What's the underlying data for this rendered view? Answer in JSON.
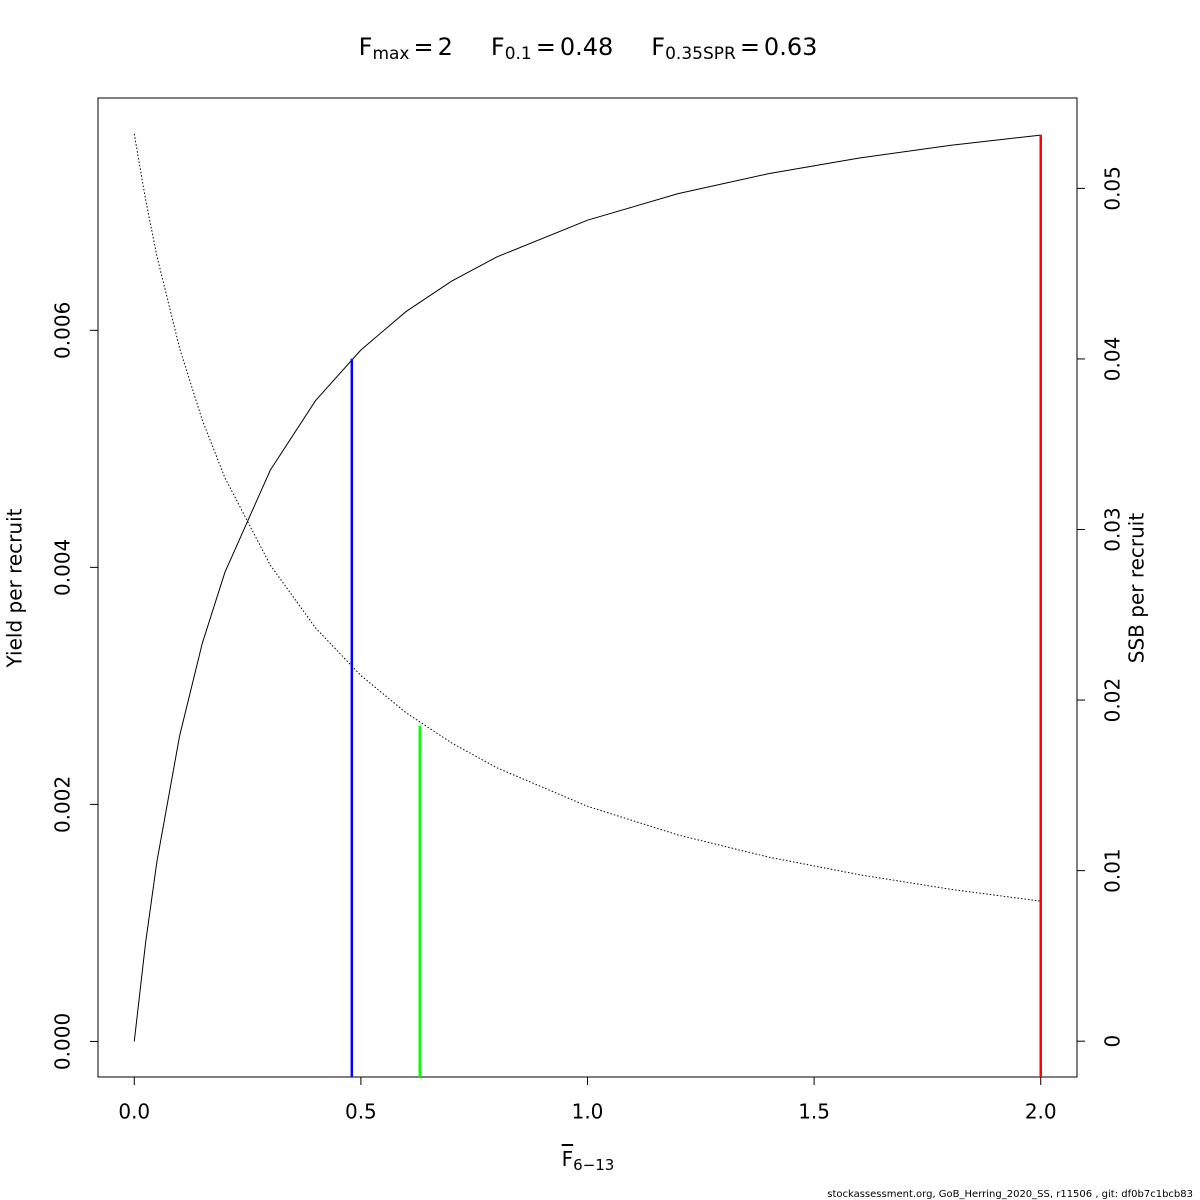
{
  "chart_data": {
    "type": "line",
    "title_items": [
      {
        "label": "F",
        "subscript": "max",
        "relation": "=",
        "value": 2
      },
      {
        "label": "F",
        "subscript": "0.1",
        "relation": "=",
        "value": 0.48
      },
      {
        "label": "F",
        "subscript": "0.35SPR",
        "relation": "=",
        "value": 0.63
      }
    ],
    "reference_lines": [
      {
        "x_of": 0,
        "top": 0.00765,
        "axis": "y",
        "color": "#ff0000"
      },
      {
        "x_of": 1,
        "top": 0.00576,
        "axis": "y",
        "color": "#0000ff"
      },
      {
        "x_of": 2,
        "top": 0.0185,
        "axis": "y2",
        "color": "#00ff00"
      }
    ],
    "xlabel": {
      "text": "F",
      "subscript": "6−13"
    },
    "ylabel": "Yield per recruit",
    "y2label": "SSB per recruit",
    "footer": "stockassessment.org, GoB_Herring_2020_SS, r11506 , git: df0b7c1bcb83",
    "x": [
      0,
      0.025,
      0.05,
      0.1,
      0.15,
      0.2,
      0.3,
      0.4,
      0.5,
      0.6,
      0.7,
      0.8,
      1.0,
      1.2,
      1.4,
      1.6,
      1.8,
      2.0
    ],
    "series": [
      {
        "axis": "y",
        "color": "#000000",
        "dashed": false,
        "values": [
          0,
          0.000833,
          0.001518,
          0.002577,
          0.003358,
          0.003958,
          0.004819,
          0.005407,
          0.005834,
          0.006159,
          0.006414,
          0.006619,
          0.006929,
          0.007153,
          0.007322,
          0.007454,
          0.00756,
          0.007647
        ]
      },
      {
        "axis": "y2",
        "color": "#000000",
        "dashed": true,
        "values": [
          0.0532,
          0.04934,
          0.04603,
          0.04063,
          0.03642,
          0.03303,
          0.02792,
          0.02423,
          0.02144,
          0.01925,
          0.01749,
          0.01603,
          0.01377,
          0.01209,
          0.01079,
          0.00976,
          0.00891,
          0.00821
        ]
      }
    ],
    "xlim": [
      -0.08,
      2.08
    ],
    "xticks": [
      {
        "value": 0,
        "label": "0.0"
      },
      0.5,
      {
        "value": 1,
        "label": "1.0"
      },
      1.5,
      {
        "value": 2,
        "label": "2.0"
      }
    ],
    "ylim": [
      -0.0003,
      0.00796
    ],
    "yticks": [
      {
        "value": 0,
        "label": "0.000"
      },
      {
        "value": 0.002,
        "label": "0.002"
      },
      {
        "value": 0.004,
        "label": "0.004"
      },
      {
        "value": 0.006,
        "label": "0.006"
      }
    ],
    "y2lim": [
      -0.0021,
      0.0553
    ],
    "y2ticks": [
      0,
      0.01,
      0.02,
      0.03,
      0.04,
      0.05
    ],
    "grid": false
  }
}
